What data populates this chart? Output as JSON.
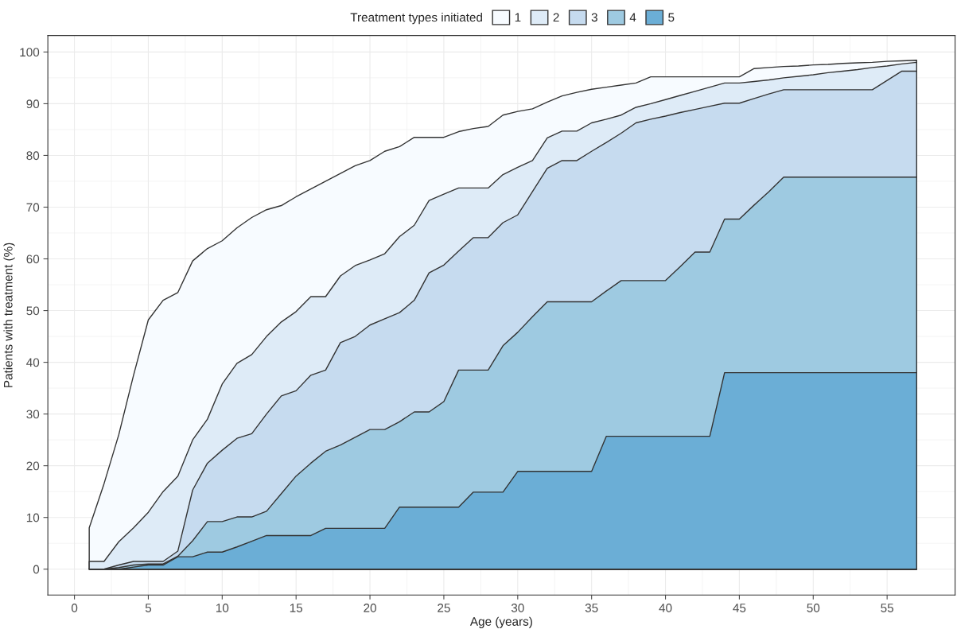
{
  "chart_data": {
    "type": "area",
    "xlabel": "Age (years)",
    "ylabel": "Patients with treatment (%)",
    "legend_title": "Treatment types initiated",
    "x": [
      1,
      2,
      3,
      4,
      5,
      6,
      7,
      8,
      9,
      10,
      11,
      12,
      13,
      14,
      15,
      16,
      17,
      18,
      19,
      20,
      21,
      22,
      23,
      24,
      25,
      26,
      27,
      28,
      29,
      30,
      31,
      32,
      33,
      34,
      35,
      36,
      37,
      38,
      39,
      40,
      41,
      42,
      43,
      44,
      45,
      46,
      47,
      48,
      49,
      50,
      51,
      52,
      53,
      54,
      55,
      56,
      57
    ],
    "series": [
      {
        "name": "1",
        "color": "#f7fbff",
        "values": [
          8,
          16.5,
          26,
          37.5,
          48.2,
          52,
          53.5,
          59.6,
          62,
          63.5,
          66,
          68,
          69.5,
          70.3,
          72,
          73.5,
          75,
          76.5,
          78,
          79,
          80.8,
          81.7,
          83.5,
          83.5,
          83.5,
          84.6,
          85.2,
          85.6,
          87.8,
          88.5,
          89,
          90.3,
          91.5,
          92.2,
          92.8,
          93.2,
          93.6,
          94,
          95.2,
          95.2,
          95.2,
          95.2,
          95.2,
          95.2,
          95.2,
          96.8,
          97,
          97.2,
          97.3,
          97.5,
          97.6,
          97.8,
          97.9,
          98,
          98.2,
          98.3,
          98.4
        ]
      },
      {
        "name": "2",
        "color": "#deebf7",
        "values": [
          1.5,
          1.5,
          5.3,
          8,
          11,
          15,
          18,
          25,
          29,
          35.8,
          39.8,
          41.5,
          45,
          47.8,
          49.8,
          52.7,
          52.7,
          56.7,
          58.7,
          59.8,
          61,
          64.3,
          66.5,
          71.3,
          72.5,
          73.7,
          73.7,
          73.7,
          76.3,
          77.7,
          79,
          83.4,
          84.7,
          84.7,
          86.3,
          87,
          87.8,
          89.3,
          90,
          90.8,
          91.6,
          92.4,
          93.2,
          94,
          94,
          94.3,
          94.6,
          95,
          95.3,
          95.6,
          96,
          96.3,
          96.6,
          97,
          97.3,
          97.7,
          98
        ]
      },
      {
        "name": "3",
        "color": "#c6dbef",
        "values": [
          0,
          0,
          0.8,
          1.5,
          1.5,
          1.5,
          3.5,
          15.3,
          20.5,
          23,
          25.3,
          26.2,
          30,
          33.5,
          34.5,
          37.5,
          38.5,
          43.8,
          45,
          47.2,
          48.4,
          49.6,
          52,
          57.3,
          58.8,
          61.5,
          64.1,
          64.1,
          67,
          68.5,
          73,
          77.5,
          79,
          79,
          80.8,
          82.5,
          84.3,
          86.3,
          87,
          87.6,
          88.3,
          88.9,
          89.5,
          90.1,
          90.1,
          91,
          91.9,
          92.7,
          92.7,
          92.7,
          92.7,
          92.7,
          92.7,
          92.7,
          94.5,
          96.3,
          96.3
        ]
      },
      {
        "name": "4",
        "color": "#9ecae1",
        "values": [
          0,
          0,
          0.3,
          0.8,
          1,
          1,
          2.5,
          5.5,
          9.2,
          9.2,
          10.1,
          10.1,
          11.2,
          14.6,
          18,
          20.5,
          22.8,
          24,
          25.5,
          27,
          27,
          28.5,
          30.4,
          30.4,
          32.4,
          38.5,
          38.5,
          38.5,
          43.2,
          45.8,
          48.8,
          51.7,
          51.7,
          51.7,
          51.7,
          53.8,
          55.8,
          55.8,
          55.8,
          55.8,
          58.5,
          61.3,
          61.3,
          67.7,
          67.7,
          70.4,
          73,
          75.8,
          75.8,
          75.8,
          75.8,
          75.8,
          75.8,
          75.8,
          75.8,
          75.8,
          75.8
        ]
      },
      {
        "name": "5",
        "color": "#6baed6",
        "values": [
          0,
          0,
          0,
          0.4,
          0.8,
          0.8,
          2.4,
          2.4,
          3.3,
          3.3,
          4.3,
          5.4,
          6.5,
          6.5,
          6.5,
          6.5,
          7.9,
          7.9,
          7.9,
          7.9,
          7.9,
          12,
          12,
          12,
          12,
          12,
          14.9,
          14.9,
          14.9,
          18.9,
          18.9,
          18.9,
          18.9,
          18.9,
          18.9,
          25.7,
          25.7,
          25.7,
          25.7,
          25.7,
          25.7,
          25.7,
          25.7,
          38,
          38,
          38,
          38,
          38,
          38,
          38,
          38,
          38,
          38,
          38,
          38,
          38,
          38
        ]
      }
    ],
    "xlim": [
      -1.8,
      59.6
    ],
    "ylim": [
      -5,
      103.2
    ],
    "xticks": [
      0,
      5,
      10,
      15,
      20,
      25,
      30,
      35,
      40,
      45,
      50,
      55
    ],
    "yticks": [
      0,
      10,
      20,
      30,
      40,
      50,
      60,
      70,
      80,
      90,
      100
    ],
    "grid": true,
    "legend": "top"
  }
}
